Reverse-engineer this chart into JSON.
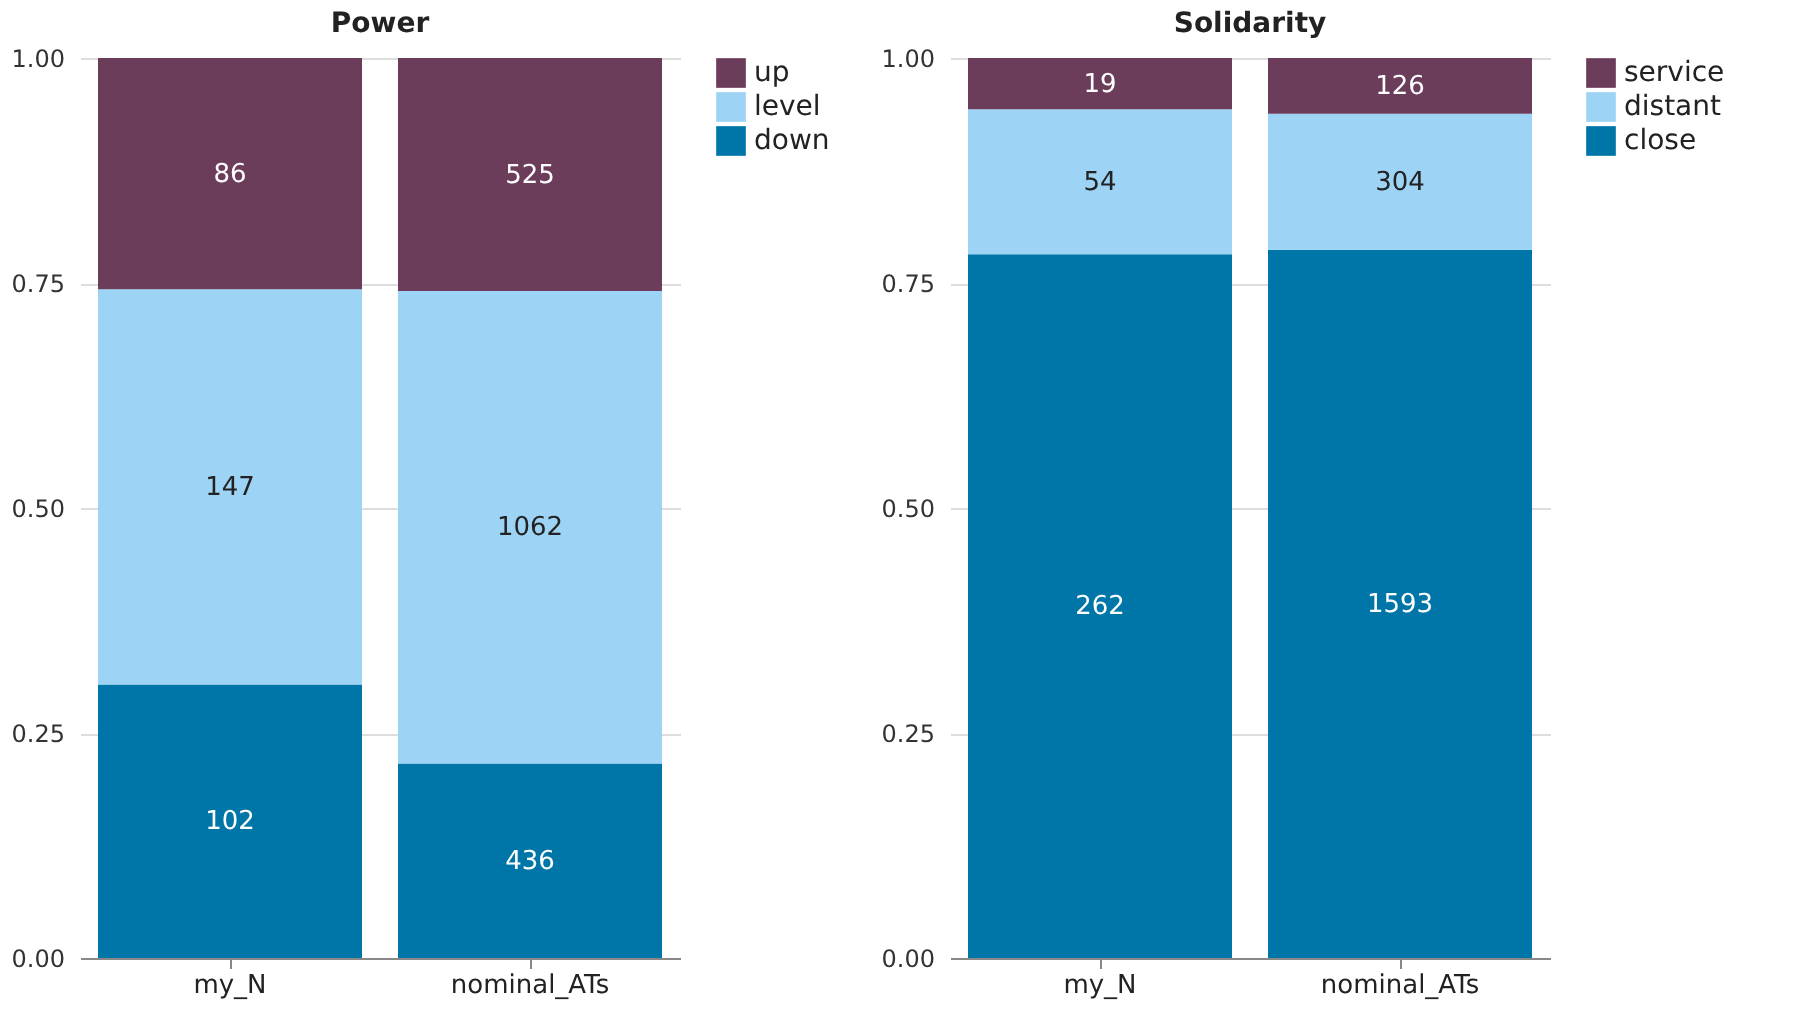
{
  "chart_data": [
    {
      "type": "bar",
      "title": "Power",
      "stacked": true,
      "categories": [
        "my_N",
        "nominal_ATs"
      ],
      "ylim": [
        0,
        1
      ],
      "yticks": [
        {
          "value": 0,
          "label": "0.00"
        },
        {
          "value": 0.25,
          "label": "0.25"
        },
        {
          "value": 0.5,
          "label": "0.50"
        },
        {
          "value": 0.75,
          "label": "0.75"
        },
        {
          "value": 1,
          "label": "1.00"
        }
      ],
      "grid": "y",
      "legend": "top right",
      "series": [
        {
          "name": "down",
          "color": "#0076a8",
          "values": [
            0.304,
            0.216
          ]
        },
        {
          "name": "level",
          "color": "#9dd4f5",
          "values": [
            0.439,
            0.525
          ]
        },
        {
          "name": "up",
          "color": "#6b3d5a",
          "values": [
            0.257,
            0.259
          ]
        }
      ],
      "annotations": [
        "102",
        "436",
        "147",
        "1062",
        "86",
        "525"
      ]
    },
    {
      "type": "bar",
      "title": "Solidarity",
      "stacked": true,
      "categories": [
        "my_N",
        "nominal_ATs"
      ],
      "ylim": [
        0,
        1
      ],
      "yticks": [
        {
          "value": 0,
          "label": "0.00"
        },
        {
          "value": 0.25,
          "label": "0.25"
        },
        {
          "value": 0.5,
          "label": "0.50"
        },
        {
          "value": 0.75,
          "label": "0.75"
        },
        {
          "value": 1,
          "label": "1.00"
        }
      ],
      "grid": "y",
      "legend": "top right",
      "series": [
        {
          "name": "close",
          "color": "#0076a8",
          "values": [
            0.782,
            0.787
          ]
        },
        {
          "name": "distant",
          "color": "#9dd4f5",
          "values": [
            0.161,
            0.151
          ]
        },
        {
          "name": "service",
          "color": "#6b3d5a",
          "values": [
            0.057,
            0.062
          ]
        }
      ],
      "annotations": [
        "262",
        "1593",
        "54",
        "304",
        "19",
        "126"
      ]
    }
  ]
}
